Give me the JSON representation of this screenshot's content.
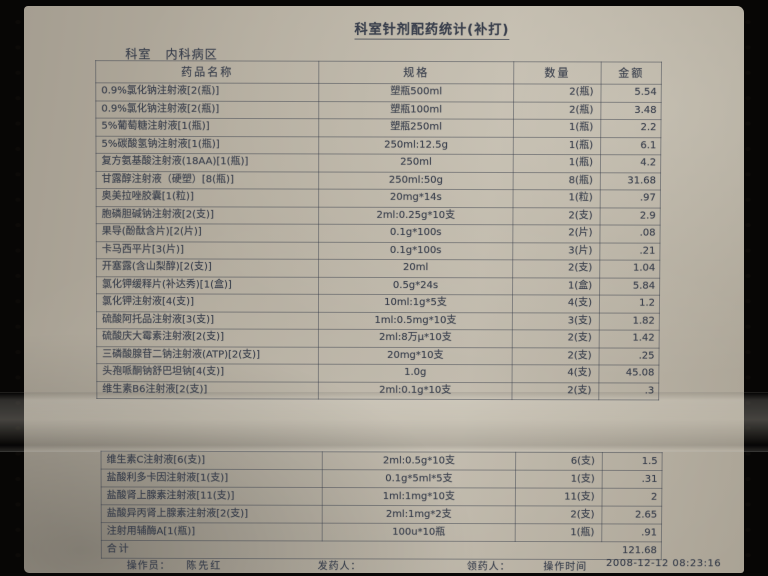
{
  "colors": {
    "background": "#070605",
    "paper": "#b3ac9e",
    "ink": "#2f3644"
  },
  "title": "科室针剂配药统计(补打)",
  "department": {
    "label": "科室",
    "value": "内科病区"
  },
  "table": {
    "headers": [
      "药品名称",
      "规格",
      "数量",
      "金额"
    ],
    "rows_top": [
      {
        "name": "0.9%氯化钠注射液[2(瓶)]",
        "spec": "塑瓶500ml",
        "qty": "2(瓶)",
        "amt": "5.54"
      },
      {
        "name": "0.9%氯化钠注射液[2(瓶)]",
        "spec": "塑瓶100ml",
        "qty": "2(瓶)",
        "amt": "3.48"
      },
      {
        "name": "5%葡萄糖注射液[1(瓶)]",
        "spec": "塑瓶250ml",
        "qty": "1(瓶)",
        "amt": "2.2"
      },
      {
        "name": "5%碳酸氢钠注射液[1(瓶)]",
        "spec": "250ml:12.5g",
        "qty": "1(瓶)",
        "amt": "6.1"
      },
      {
        "name": "复方氨基酸注射液(18AA)[1(瓶)]",
        "spec": "250ml",
        "qty": "1(瓶)",
        "amt": "4.2"
      },
      {
        "name": "甘露醇注射液（硬塑）[8(瓶)]",
        "spec": "250ml:50g",
        "qty": "8(瓶)",
        "amt": "31.68"
      },
      {
        "name": "奥美拉唑胶囊[1(粒)]",
        "spec": "20mg*14s",
        "qty": "1(粒)",
        "amt": ".97"
      },
      {
        "name": "胞磷胆碱钠注射液[2(支)]",
        "spec": "2ml:0.25g*10支",
        "qty": "2(支)",
        "amt": "2.9"
      },
      {
        "name": "果导(酚酞含片)[2(片)]",
        "spec": "0.1g*100s",
        "qty": "2(片)",
        "amt": ".08"
      },
      {
        "name": "卡马西平片[3(片)]",
        "spec": "0.1g*100s",
        "qty": "3(片)",
        "amt": ".21"
      },
      {
        "name": "开塞露(含山梨醇)[2(支)]",
        "spec": "20ml",
        "qty": "2(支)",
        "amt": "1.04"
      },
      {
        "name": "氯化钾缓释片(补达秀)[1(盒)]",
        "spec": "0.5g*24s",
        "qty": "1(盒)",
        "amt": "5.84"
      },
      {
        "name": "氯化钾注射液[4(支)]",
        "spec": "10ml:1g*5支",
        "qty": "4(支)",
        "amt": "1.2"
      },
      {
        "name": "硫酸阿托品注射液[3(支)]",
        "spec": "1ml:0.5mg*10支",
        "qty": "3(支)",
        "amt": "1.82"
      },
      {
        "name": "硫酸庆大霉素注射液[2(支)]",
        "spec": "2ml:8万μ*10支",
        "qty": "2(支)",
        "amt": "1.42"
      },
      {
        "name": "三磷酸腺苷二钠注射液(ATP)[2(支)]",
        "spec": "20mg*10支",
        "qty": "2(支)",
        "amt": ".25"
      },
      {
        "name": "头孢哌酮钠舒巴坦钠[4(支)]",
        "spec": "1.0g",
        "qty": "4(支)",
        "amt": "45.08"
      },
      {
        "name": "维生素B6注射液[2(支)]",
        "spec": "2ml:0.1g*10支",
        "qty": "2(支)",
        "amt": ".3"
      }
    ],
    "rows_bottom": [
      {
        "name": "维生素C注射液[6(支)]",
        "spec": "2ml:0.5g*10支",
        "qty": "6(支)",
        "amt": "1.5"
      },
      {
        "name": "盐酸利多卡因注射液[1(支)]",
        "spec": "0.1g*5ml*5支",
        "qty": "1(支)",
        "amt": ".31"
      },
      {
        "name": "盐酸肾上腺素注射液[11(支)]",
        "spec": "1ml:1mg*10支",
        "qty": "11(支)",
        "amt": "2"
      },
      {
        "name": "盐酸异丙肾上腺素注射液[2(支)]",
        "spec": "2ml:1mg*2支",
        "qty": "2(支)",
        "amt": "2.65"
      },
      {
        "name": "注射用辅酶A[1(瓶)]",
        "spec": "100u*10瓶",
        "qty": "1(瓶)",
        "amt": ".91"
      }
    ],
    "total_label": "合计",
    "total_amount": "121.68"
  },
  "footer": {
    "operator_label": "操作员：",
    "operator_name": "陈先红",
    "dispenser_label": "发药人：",
    "receiver_label": "领药人：",
    "time_label": "操作时间",
    "time_value": "2008-12-12 08:23:16"
  }
}
